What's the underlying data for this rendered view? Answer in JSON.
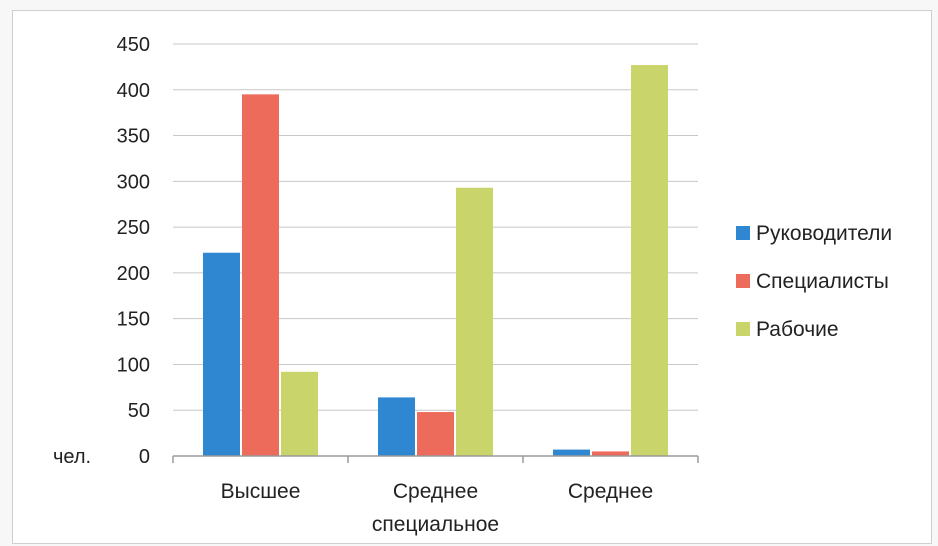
{
  "chart_data": {
    "type": "bar",
    "categories": [
      [
        "Высшее"
      ],
      [
        "Среднее",
        "специальное"
      ],
      [
        "Среднее"
      ]
    ],
    "series": [
      {
        "name": "Руководители",
        "color": "#2f86d1",
        "values": [
          222,
          64,
          7
        ]
      },
      {
        "name": "Специалисты",
        "color": "#ec6b5a",
        "values": [
          395,
          48,
          5
        ]
      },
      {
        "name": "Рабочие",
        "color": "#c9d56a",
        "values": [
          92,
          293,
          427
        ]
      }
    ],
    "yticks": [
      "0",
      "50",
      "100",
      "150",
      "200",
      "250",
      "300",
      "350",
      "400",
      "450"
    ],
    "ylim": [
      0,
      450
    ],
    "ylabel": "чел.",
    "xlabel": "",
    "title": "",
    "grid": true,
    "legend_position": "right"
  }
}
